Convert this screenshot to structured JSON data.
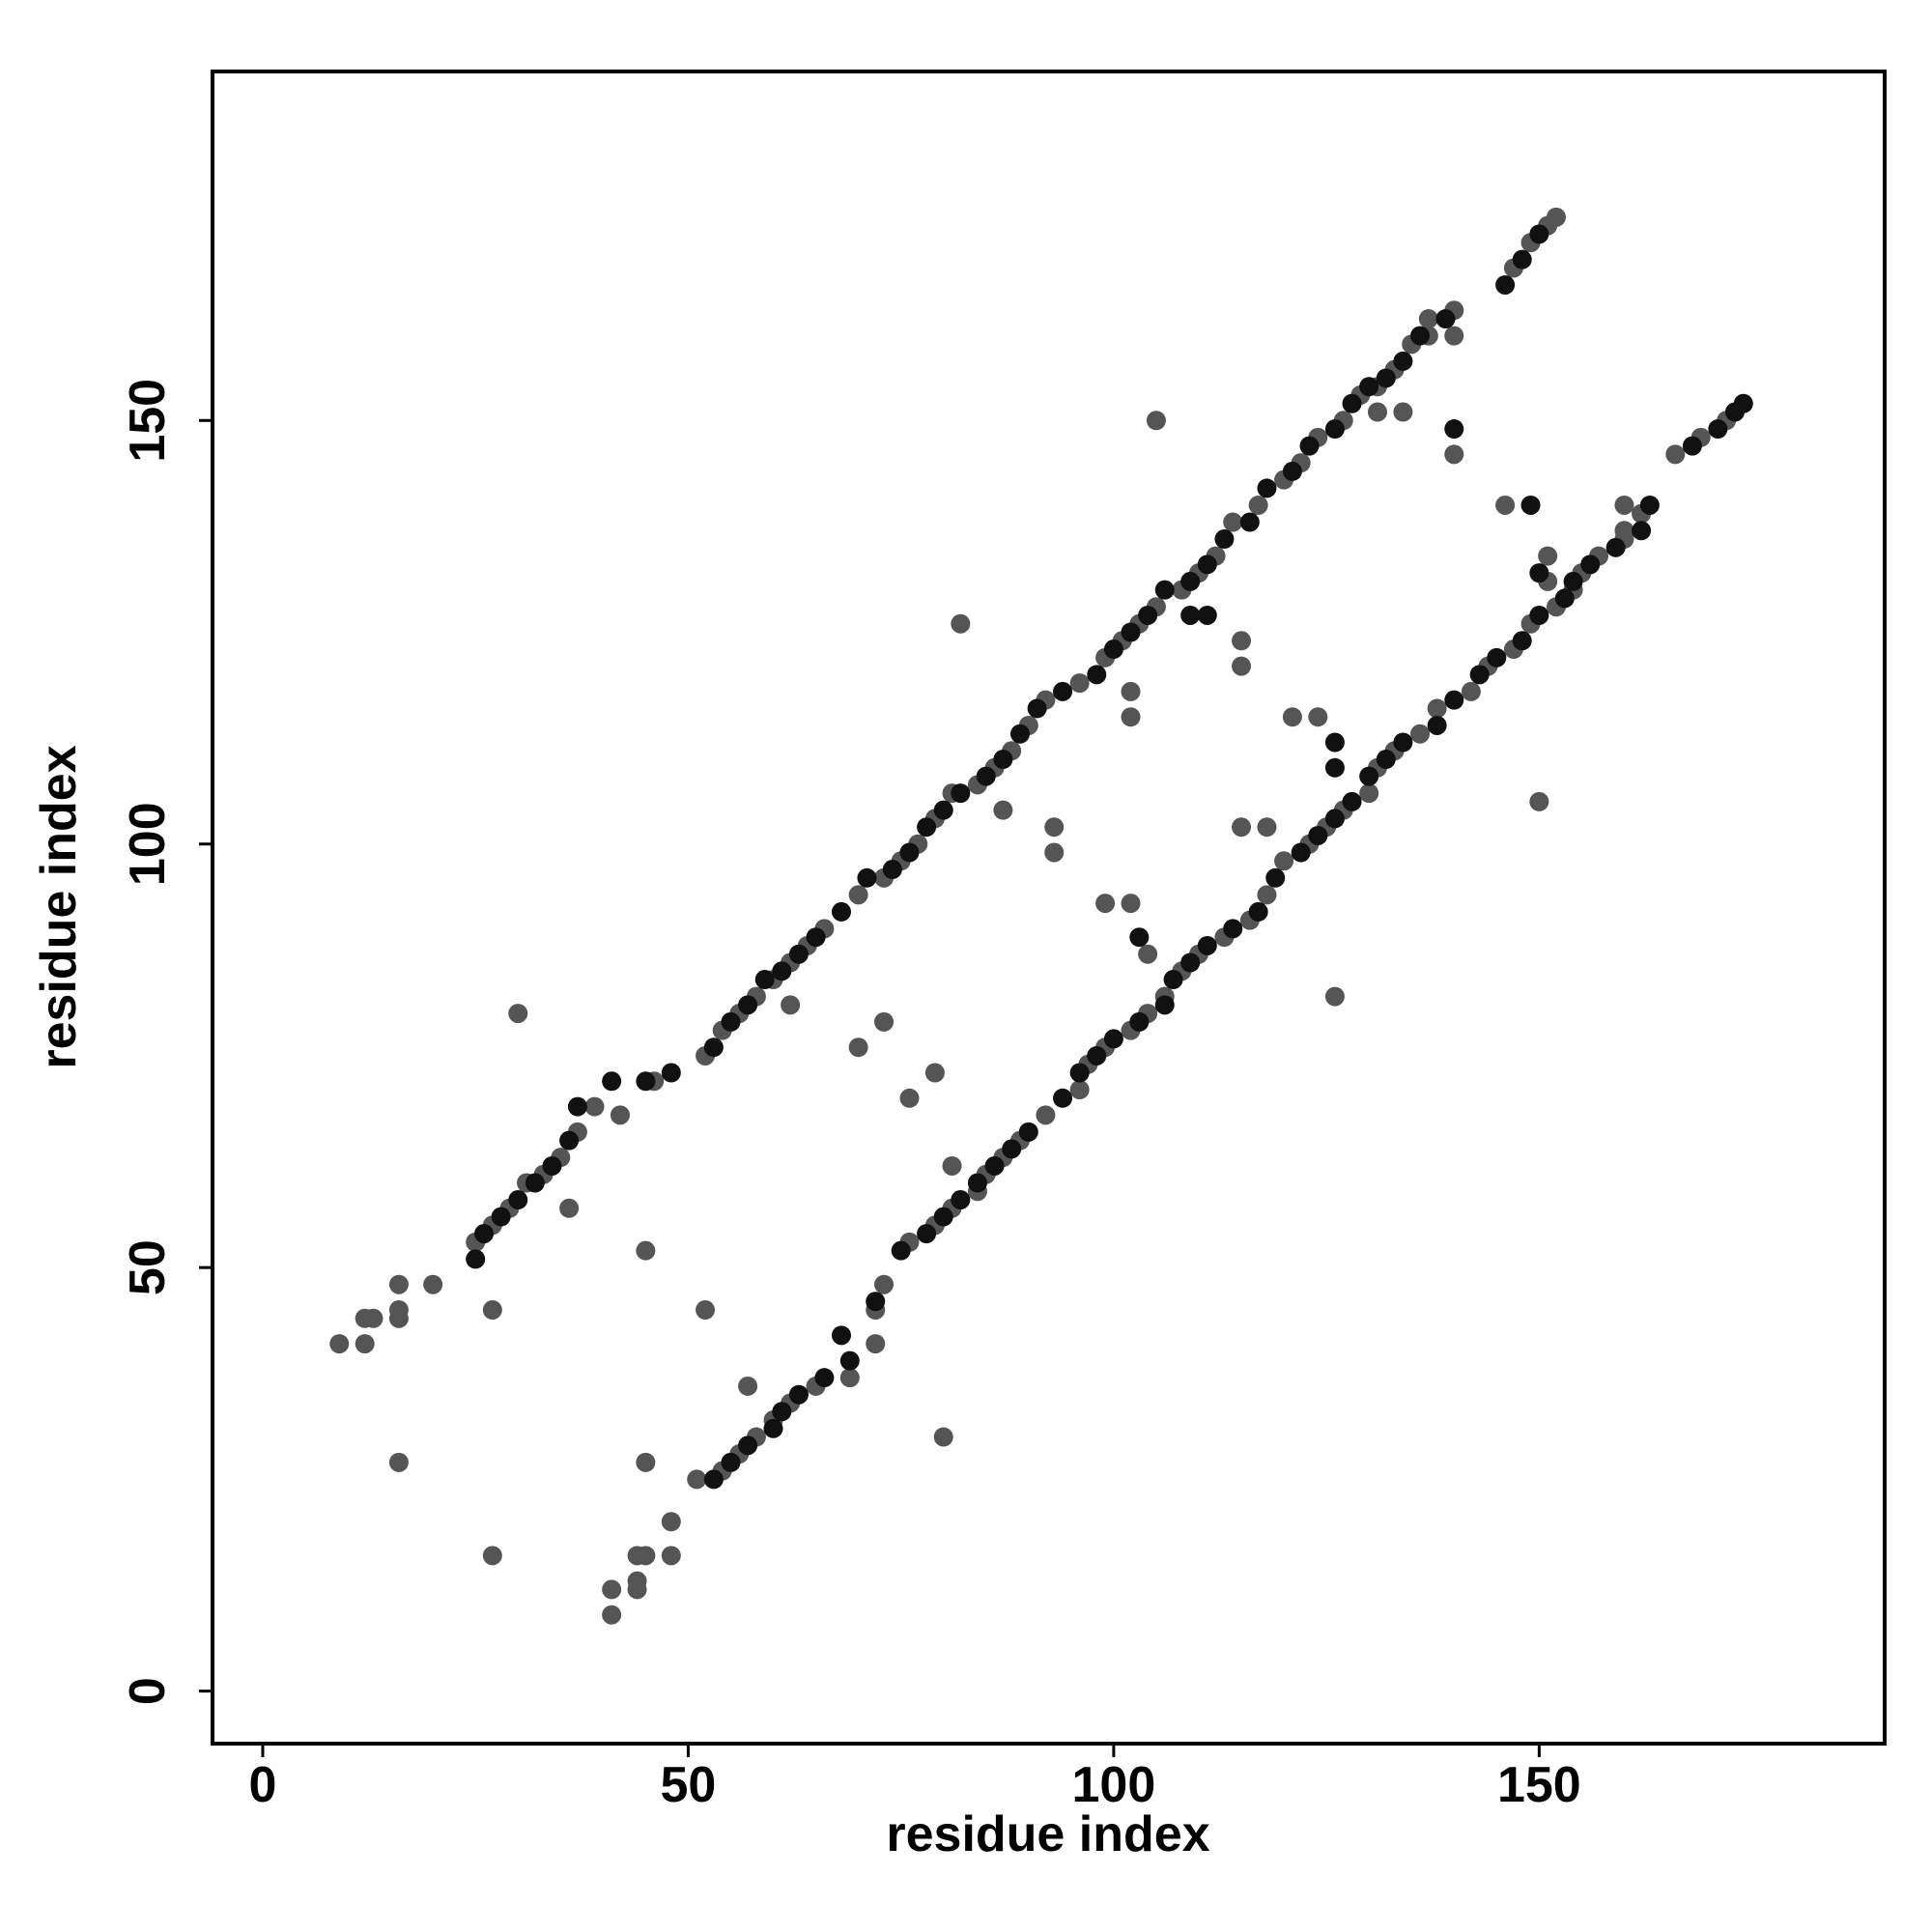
{
  "chart_data": {
    "type": "scatter",
    "xlabel": "residue index",
    "ylabel": "residue index",
    "xlim": [
      -5.9,
      190.6
    ],
    "ylim": [
      -6.2,
      191.2
    ],
    "xticks": [
      0,
      50,
      100,
      150
    ],
    "yticks": [
      0,
      50,
      100,
      150
    ],
    "series": [
      {
        "color": "#555555",
        "x": [
          25,
          27,
          29,
          31,
          33,
          35,
          37,
          39,
          42,
          46,
          52,
          54,
          56,
          58,
          60,
          62,
          64,
          66,
          70,
          73,
          75,
          77,
          79,
          81,
          84,
          86,
          88,
          90,
          92,
          96,
          99,
          101,
          103,
          105,
          108,
          110,
          112,
          114,
          117,
          120,
          122,
          124,
          127,
          129,
          131,
          133,
          135,
          137,
          140,
          147,
          149,
          151,
          152,
          51,
          54,
          56,
          58,
          60,
          62,
          65,
          69,
          72,
          72,
          73,
          76,
          79,
          81,
          84,
          85,
          87,
          89,
          92,
          96,
          97,
          99,
          102,
          104,
          106,
          108,
          110,
          113,
          116,
          118,
          120,
          123,
          125,
          127,
          130,
          131,
          133,
          136,
          138,
          142,
          144,
          147,
          149,
          152,
          154,
          155,
          157,
          160,
          162,
          166,
          169,
          172,
          9,
          12,
          12,
          13,
          16,
          16,
          16,
          20,
          41,
          41,
          44,
          44,
          44,
          45,
          48,
          48,
          30,
          80,
          27,
          45,
          16,
          27,
          36,
          57,
          45,
          52,
          62,
          81,
          70,
          76,
          73,
          79,
          82,
          126,
          87,
          104,
          93,
          102,
          93,
          99,
          102,
          115,
          102,
          118,
          115,
          124,
          115,
          121,
          105,
          150,
          131,
          151,
          134,
          151,
          140,
          146,
          137,
          160,
          140,
          160
        ],
        "values": [
          53,
          55,
          57,
          60,
          61,
          63,
          66,
          69,
          68,
          72,
          75,
          78,
          80,
          82,
          84,
          86,
          88,
          90,
          94,
          96,
          98,
          100,
          103,
          106,
          107,
          109,
          111,
          114,
          117,
          119,
          122,
          124,
          126,
          128,
          130,
          132,
          134,
          138,
          140,
          143,
          145,
          148,
          150,
          153,
          154,
          156,
          159,
          162,
          163,
          168,
          171,
          173,
          174,
          25,
          26,
          28,
          30,
          32,
          34,
          36,
          37,
          41,
          45,
          48,
          53,
          55,
          57,
          59,
          61,
          63,
          65,
          68,
          71,
          74,
          76,
          78,
          80,
          82,
          85,
          87,
          89,
          91,
          94,
          98,
          100,
          102,
          104,
          106,
          109,
          111,
          113,
          116,
          118,
          121,
          123,
          126,
          128,
          130,
          132,
          134,
          136,
          139,
          146,
          148,
          150,
          41,
          41,
          44,
          44,
          44,
          45,
          48,
          48,
          9,
          12,
          12,
          13,
          16,
          16,
          16,
          20,
          80,
          30,
          45,
          27,
          27,
          16,
          57,
          36,
          52,
          45,
          81,
          62,
          76,
          70,
          79,
          73,
          126,
          82,
          104,
          87,
          102,
          93,
          99,
          93,
          115,
          102,
          118,
          102,
          124,
          115,
          121,
          115,
          150,
          105,
          151,
          131,
          151,
          134,
          146,
          140,
          160,
          137,
          160,
          140
        ]
      },
      {
        "color": "#111111",
        "x": [
          25,
          26,
          28,
          30,
          32,
          34,
          36,
          37,
          41,
          45,
          48,
          53,
          55,
          57,
          59,
          61,
          63,
          65,
          68,
          71,
          74,
          76,
          78,
          80,
          82,
          85,
          87,
          89,
          91,
          94,
          98,
          100,
          102,
          104,
          106,
          109,
          111,
          113,
          116,
          118,
          121,
          123,
          126,
          128,
          130,
          132,
          134,
          136,
          139,
          146,
          148,
          150,
          53,
          55,
          57,
          60,
          61,
          63,
          66,
          69,
          68,
          72,
          75,
          78,
          80,
          82,
          84,
          86,
          88,
          90,
          94,
          96,
          98,
          100,
          103,
          106,
          107,
          109,
          111,
          114,
          117,
          119,
          122,
          124,
          126,
          128,
          130,
          132,
          134,
          138,
          140,
          143,
          145,
          148,
          150,
          153,
          154,
          156,
          159,
          162,
          163,
          168,
          171,
          173,
          174,
          103,
          109,
          111,
          126,
          126,
          140,
          149,
          150
        ],
        "values": [
          51,
          54,
          56,
          58,
          60,
          62,
          65,
          69,
          72,
          72,
          73,
          76,
          79,
          81,
          84,
          85,
          87,
          89,
          92,
          96,
          97,
          99,
          102,
          104,
          106,
          108,
          110,
          113,
          116,
          118,
          120,
          123,
          125,
          127,
          130,
          131,
          133,
          136,
          138,
          142,
          144,
          147,
          149,
          152,
          154,
          155,
          157,
          160,
          162,
          166,
          169,
          172,
          25,
          27,
          29,
          31,
          33,
          35,
          37,
          39,
          42,
          46,
          52,
          54,
          56,
          58,
          60,
          62,
          64,
          66,
          70,
          73,
          75,
          77,
          79,
          81,
          84,
          86,
          88,
          90,
          92,
          96,
          99,
          101,
          103,
          105,
          108,
          110,
          112,
          114,
          117,
          120,
          122,
          124,
          127,
          129,
          131,
          133,
          135,
          137,
          140,
          147,
          149,
          151,
          152,
          89,
          127,
          127,
          112,
          109,
          149,
          140,
          132
        ]
      }
    ]
  }
}
